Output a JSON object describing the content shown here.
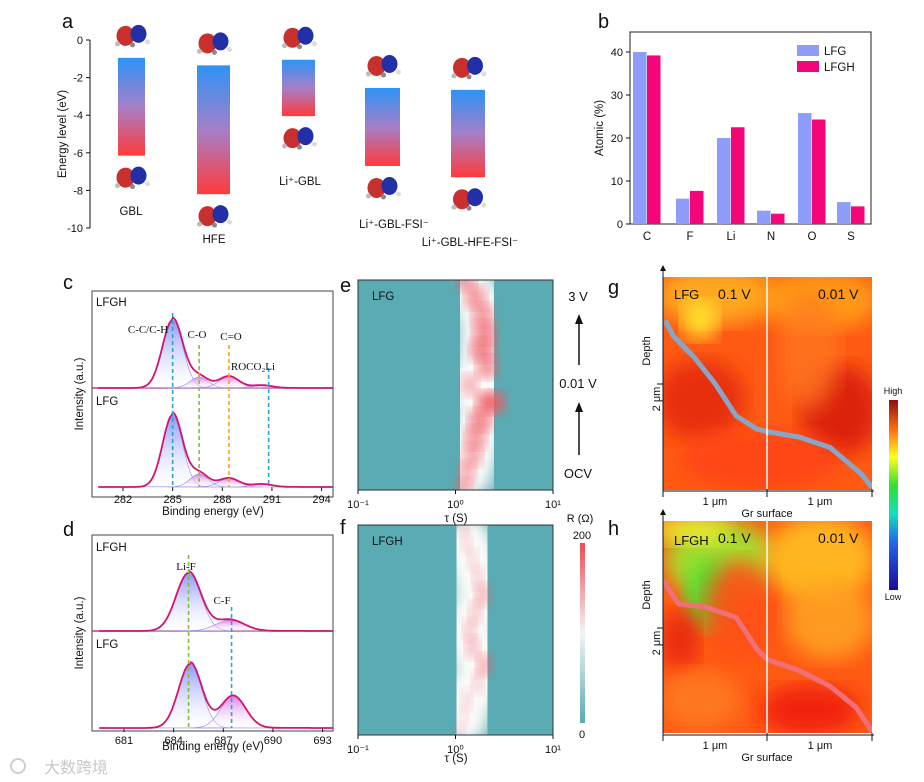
{
  "panel_letters": [
    "a",
    "b",
    "c",
    "d",
    "e",
    "f",
    "g",
    "h"
  ],
  "watermark": "大数跨境",
  "colors": {
    "lfg": "#8f9dfa",
    "lfgh": "#f4067a",
    "xps_line": "#d4146e",
    "teal": "#5aabb3",
    "pink": "#f07a84"
  },
  "chart_data": [
    {
      "id": "a",
      "type": "bar",
      "title": "",
      "ylabel": "Energy level (eV)",
      "ylim": [
        -10,
        0
      ],
      "yticks": [
        "0",
        "-2",
        "-4",
        "-6",
        "-8",
        "-10"
      ],
      "categories": [
        "GBL",
        "HFE",
        "Li⁺-GBL",
        "Li⁺-GBL-FSI⁻",
        "Li⁺-GBL-HFE-FSI⁻"
      ],
      "lumo": [
        -0.95,
        -1.35,
        -1.05,
        -2.55,
        -2.65
      ],
      "homo": [
        -6.15,
        -8.2,
        -4.05,
        -6.7,
        -7.3
      ]
    },
    {
      "id": "b",
      "type": "bar",
      "ylabel": "Atomic (%)",
      "ylim": [
        0,
        45
      ],
      "yticks": [
        "0",
        "10",
        "20",
        "30",
        "40"
      ],
      "categories": [
        "C",
        "F",
        "Li",
        "N",
        "O",
        "S"
      ],
      "series": [
        {
          "name": "LFG",
          "values": [
            40,
            5.9,
            20,
            3.1,
            25.8,
            5.1
          ]
        },
        {
          "name": "LFGH",
          "values": [
            39.2,
            7.7,
            22.5,
            2.4,
            24.3,
            4.1
          ]
        }
      ],
      "legend": "top-right"
    },
    {
      "id": "c",
      "type": "line",
      "xlabel": "Binding energy (eV)",
      "ylabel": "Intensity (a.u.)",
      "xlim": [
        280.5,
        295
      ],
      "xticks": [
        "282",
        "285",
        "288",
        "291",
        "294"
      ],
      "samples": [
        {
          "name": "LFGH",
          "peaks": [
            {
              "center": 285.0,
              "height": 1.0,
              "sigma": 0.62
            },
            {
              "center": 286.6,
              "height": 0.16,
              "sigma": 0.55
            },
            {
              "center": 288.4,
              "height": 0.17,
              "sigma": 0.6
            },
            {
              "center": 290.4,
              "height": 0.04,
              "sigma": 0.6
            }
          ]
        },
        {
          "name": "LFG",
          "peaks": [
            {
              "center": 285.0,
              "height": 1.0,
              "sigma": 0.6
            },
            {
              "center": 286.6,
              "height": 0.18,
              "sigma": 0.55
            },
            {
              "center": 288.4,
              "height": 0.12,
              "sigma": 0.6
            },
            {
              "center": 290.4,
              "height": 0.04,
              "sigma": 0.6
            }
          ]
        }
      ],
      "annotations": [
        {
          "text": "C-C/C-H",
          "position": 285.0,
          "color": "#2aa3d8"
        },
        {
          "text": "C-O",
          "position": 286.6,
          "color": "#86bd3e"
        },
        {
          "text": "C=O",
          "position": 288.4,
          "color": "#f1a627"
        },
        {
          "text": "ROCO₂Li",
          "position": 290.8,
          "color": "#2aa3d8"
        }
      ]
    },
    {
      "id": "d",
      "type": "line",
      "xlabel": "Binding energy (eV)",
      "ylabel": "Intensity (a.u.)",
      "xlim": [
        679.5,
        695
      ],
      "xticks": [
        "681",
        "684",
        "687",
        "690",
        "693"
      ],
      "samples": [
        {
          "name": "LFGH",
          "peaks": [
            {
              "center": 684.9,
              "height": 1.0,
              "sigma": 0.75
            },
            {
              "center": 687.4,
              "height": 0.19,
              "sigma": 0.85
            }
          ]
        },
        {
          "name": "LFG",
          "peaks": [
            {
              "center": 685.0,
              "height": 1.0,
              "sigma": 0.7
            },
            {
              "center": 687.6,
              "height": 0.5,
              "sigma": 0.75
            }
          ]
        }
      ],
      "annotations": [
        {
          "text": "Li-F",
          "position": 684.9,
          "color": "#86bd3e"
        },
        {
          "text": "C-F",
          "position": 687.5,
          "color": "#2aa3d8"
        }
      ]
    },
    {
      "id": "e",
      "type": "heatmap",
      "label": "LFG",
      "xlabel": "τ (S)",
      "xscale": "log",
      "xlim": [
        0.1,
        10
      ],
      "xticks": [
        "10⁻¹",
        "10⁰",
        "10¹"
      ],
      "states": [
        "3 V",
        "0.01 V",
        "OCV"
      ],
      "ridge_tau": [
        1.3,
        1.6,
        1.9,
        2.0,
        1.9,
        2.1,
        1.4,
        2.3,
        1.8,
        1.6,
        1.5,
        1.3,
        1.2
      ],
      "ridge_intensity": [
        0.6,
        0.7,
        0.7,
        0.8,
        0.85,
        0.7,
        0.5,
        1.0,
        0.8,
        0.7,
        0.6,
        0.55,
        0.5
      ]
    },
    {
      "id": "f",
      "type": "heatmap",
      "label": "LFGH",
      "xlabel": "τ (S)",
      "xscale": "log",
      "xlim": [
        0.1,
        10
      ],
      "xticks": [
        "10⁻¹",
        "10⁰",
        "10¹"
      ],
      "colorbar": {
        "title": "R (Ω)",
        "max": "200",
        "min": "0"
      },
      "ridge_tau": [
        1.2,
        1.3,
        1.5,
        1.7,
        1.9,
        1.6,
        1.4,
        1.5,
        2.0,
        1.7,
        1.3,
        1.2,
        1.1
      ],
      "ridge_intensity": [
        0.25,
        0.25,
        0.25,
        0.3,
        0.45,
        0.35,
        0.35,
        0.4,
        0.5,
        0.3,
        0.25,
        0.2,
        0.2
      ]
    },
    {
      "id": "g",
      "type": "heatmap",
      "label": "LFG",
      "voltages": [
        "0.1 V",
        "0.01 V"
      ],
      "xlabel": "Gr surface",
      "ylabel": "Depth",
      "ytick": "2 μm",
      "xtick": "1 μm",
      "profile_x_um": [
        0.02,
        0.1,
        0.3,
        0.5,
        0.7,
        0.9,
        1.0,
        1.3,
        1.6,
        1.9,
        2.0
      ],
      "profile_depth_um": [
        3.2,
        2.9,
        2.5,
        2.0,
        1.4,
        1.15,
        1.1,
        1.0,
        0.8,
        0.3,
        0.05
      ],
      "profile_color": "#8aa6c6"
    },
    {
      "id": "h",
      "type": "heatmap",
      "label": "LFGH",
      "voltages": [
        "0.1 V",
        "0.01 V"
      ],
      "xlabel": "Gr surface",
      "ylabel": "Depth",
      "ytick": "2 μm",
      "xtick": "1 μm",
      "profile_x_um": [
        0.0,
        0.15,
        0.4,
        0.7,
        0.9,
        1.0,
        1.3,
        1.6,
        1.85,
        2.0
      ],
      "profile_depth_um": [
        2.9,
        2.45,
        2.4,
        2.2,
        1.6,
        1.4,
        1.2,
        0.9,
        0.5,
        0.05
      ],
      "profile_color": "#f0707a",
      "colorbar": {
        "high": "High",
        "low": "Low"
      }
    }
  ]
}
